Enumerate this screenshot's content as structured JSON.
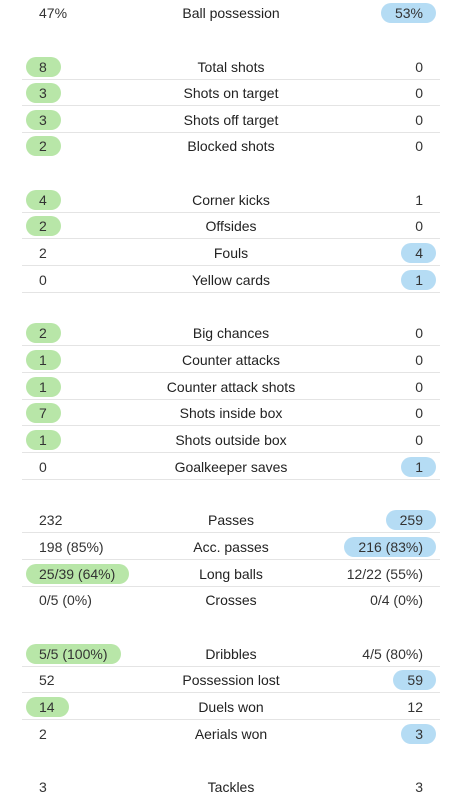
{
  "stats": {
    "possession": {
      "home": "47%",
      "label": "Ball possession",
      "away": "53%"
    },
    "total_shots": {
      "home": "8",
      "label": "Total shots",
      "away": "0"
    },
    "shots_on_target": {
      "home": "3",
      "label": "Shots on target",
      "away": "0"
    },
    "shots_off_target": {
      "home": "3",
      "label": "Shots off target",
      "away": "0"
    },
    "blocked_shots": {
      "home": "2",
      "label": "Blocked shots",
      "away": "0"
    },
    "corner_kicks": {
      "home": "4",
      "label": "Corner kicks",
      "away": "1"
    },
    "offsides": {
      "home": "2",
      "label": "Offsides",
      "away": "0"
    },
    "fouls": {
      "home": "2",
      "label": "Fouls",
      "away": "4"
    },
    "yellow_cards": {
      "home": "0",
      "label": "Yellow cards",
      "away": "1"
    },
    "big_chances": {
      "home": "2",
      "label": "Big chances",
      "away": "0"
    },
    "counter_attacks": {
      "home": "1",
      "label": "Counter attacks",
      "away": "0"
    },
    "counter_attack_shots": {
      "home": "1",
      "label": "Counter attack shots",
      "away": "0"
    },
    "shots_inside_box": {
      "home": "7",
      "label": "Shots inside box",
      "away": "0"
    },
    "shots_outside_box": {
      "home": "1",
      "label": "Shots outside box",
      "away": "0"
    },
    "goalkeeper_saves": {
      "home": "0",
      "label": "Goalkeeper saves",
      "away": "1"
    },
    "passes": {
      "home": "232",
      "label": "Passes",
      "away": "259"
    },
    "acc_passes": {
      "home": "198 (85%)",
      "label": "Acc. passes",
      "away": "216 (83%)"
    },
    "long_balls": {
      "home": "25/39 (64%)",
      "label": "Long balls",
      "away": "12/22 (55%)"
    },
    "crosses": {
      "home": "0/5 (0%)",
      "label": "Crosses",
      "away": "0/4 (0%)"
    },
    "dribbles": {
      "home": "5/5 (100%)",
      "label": "Dribbles",
      "away": "4/5 (80%)"
    },
    "possession_lost": {
      "home": "52",
      "label": "Possession lost",
      "away": "59"
    },
    "duels_won": {
      "home": "14",
      "label": "Duels won",
      "away": "12"
    },
    "aerials_won": {
      "home": "2",
      "label": "Aerials won",
      "away": "3"
    },
    "tackles": {
      "home": "3",
      "label": "Tackles",
      "away": "3"
    }
  },
  "colors": {
    "home_highlight": "#b8e6a8",
    "away_highlight": "#b5dcf4",
    "divider": "#e4e4e4",
    "text": "#222222"
  }
}
